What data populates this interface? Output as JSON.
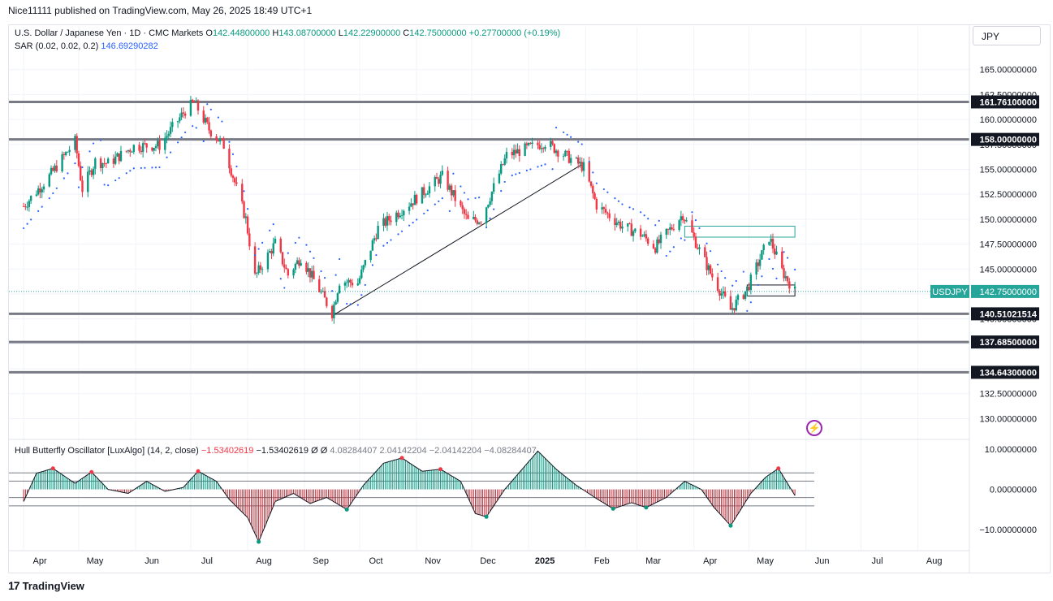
{
  "header": {
    "publisher": "Nice11111 published on TradingView.com, May 26, 2025 18:49 UTC+1"
  },
  "legend": {
    "symbol": "U.S. Dollar / Japanese Yen · 1D · CMC Markets",
    "o_label": "O",
    "o": "142.44800000",
    "h_label": "H",
    "h": "143.08700000",
    "l_label": "L",
    "l": "142.22900000",
    "c_label": "C",
    "c": "142.75000000",
    "change": "+0.27700000 (+0.19%)",
    "sar_label": "SAR (0.02, 0.02, 0.2)",
    "sar_value": "146.69290282",
    "osc_label": "Hull Butterfly Oscillator [LuxAlgo] (14, 2, close)",
    "osc_v1": "−1.53402619",
    "osc_v2": "−1.53402619",
    "osc_v3": "Ø",
    "osc_v4": "Ø",
    "osc_v5": "4.08284407",
    "osc_v6": "2.04142204",
    "osc_v7": "−2.04142204",
    "osc_v8": "−4.08284407"
  },
  "currency": "JPY",
  "footer": {
    "brand": "TradingView",
    "logo_text": "17"
  },
  "colors": {
    "up": "#089981",
    "down": "#f23645",
    "sar": "#2962ff",
    "level": "#787b86",
    "osc_up": "#089981",
    "osc_down": "#b22833",
    "label_bg": "#131722",
    "price_label": "#26a69a"
  },
  "chart_data": [
    {
      "type": "candlestick",
      "title": "U.S. Dollar / Japanese Yen · 1D · CMC Markets",
      "x_ticks": [
        "Apr",
        "May",
        "Jun",
        "Jul",
        "Aug",
        "Sep",
        "Oct",
        "Nov",
        "Dec",
        "2025",
        "Feb",
        "Mar",
        "Apr",
        "May",
        "Jun",
        "Jul",
        "Aug"
      ],
      "y_ticks": [
        "165.00000000",
        "162.50000000",
        "160.00000000",
        "157.50000000",
        "155.00000000",
        "152.50000000",
        "150.00000000",
        "147.50000000",
        "145.00000000",
        "142.50000000",
        "140.00000000",
        "137.50000000",
        "135.00000000",
        "132.50000000",
        "130.00000000"
      ],
      "ylim": [
        128,
        167.5
      ],
      "horizontal_levels": [
        {
          "value": 161.761,
          "label": "161.76100000"
        },
        {
          "value": 158.0,
          "label": "158.00000000"
        },
        {
          "value": 140.51021514,
          "label": "140.51021514"
        },
        {
          "value": 137.685,
          "label": "137.68500000"
        },
        {
          "value": 134.643,
          "label": "134.64300000"
        }
      ],
      "last_price": {
        "value": 142.75,
        "symbol": "USDJPY",
        "label": "142.75000000"
      },
      "trendline": [
        {
          "date": "2024-09-16",
          "price": 140.3
        },
        {
          "date": "2025-01-31",
          "price": 155.6
        }
      ],
      "boxes": [
        {
          "from": "2025-03-27",
          "to": "2025-05-26",
          "top": 149.3,
          "bottom": 148.2
        },
        {
          "from": "2025-04-30",
          "to": "2025-05-26",
          "top": 143.4,
          "bottom": 142.3
        }
      ],
      "path": [
        {
          "date": "2024-04-01",
          "close": 151.3
        },
        {
          "date": "2024-04-15",
          "close": 154.3
        },
        {
          "date": "2024-04-29",
          "close": 157.8
        },
        {
          "date": "2024-05-03",
          "close": 153.0
        },
        {
          "date": "2024-05-10",
          "close": 155.8
        },
        {
          "date": "2024-05-17",
          "close": 155.6
        },
        {
          "date": "2024-05-31",
          "close": 157.3
        },
        {
          "date": "2024-06-14",
          "close": 157.4
        },
        {
          "date": "2024-06-28",
          "close": 160.9
        },
        {
          "date": "2024-07-03",
          "close": 161.7
        },
        {
          "date": "2024-07-11",
          "close": 159.0
        },
        {
          "date": "2024-07-19",
          "close": 157.4
        },
        {
          "date": "2024-07-31",
          "close": 150.0
        },
        {
          "date": "2024-08-05",
          "close": 144.2
        },
        {
          "date": "2024-08-16",
          "close": 147.6
        },
        {
          "date": "2024-08-23",
          "close": 144.4
        },
        {
          "date": "2024-08-30",
          "close": 146.2
        },
        {
          "date": "2024-09-16",
          "close": 140.6
        },
        {
          "date": "2024-09-20",
          "close": 143.8
        },
        {
          "date": "2024-09-30",
          "close": 143.6
        },
        {
          "date": "2024-10-11",
          "close": 149.1
        },
        {
          "date": "2024-10-31",
          "close": 152.0
        },
        {
          "date": "2024-11-15",
          "close": 154.3
        },
        {
          "date": "2024-11-29",
          "close": 149.8
        },
        {
          "date": "2024-12-06",
          "close": 150.0
        },
        {
          "date": "2024-12-20",
          "close": 156.4
        },
        {
          "date": "2025-01-10",
          "close": 157.7
        },
        {
          "date": "2025-01-31",
          "close": 155.2
        },
        {
          "date": "2025-02-07",
          "close": 151.4
        },
        {
          "date": "2025-02-21",
          "close": 149.3
        },
        {
          "date": "2025-03-03",
          "close": 148.5
        },
        {
          "date": "2025-03-11",
          "close": 147.2
        },
        {
          "date": "2025-03-26",
          "close": 150.5
        },
        {
          "date": "2025-04-04",
          "close": 146.9
        },
        {
          "date": "2025-04-10",
          "close": 144.6
        },
        {
          "date": "2025-04-21",
          "close": 140.9
        },
        {
          "date": "2025-04-30",
          "close": 143.0
        },
        {
          "date": "2025-05-12",
          "close": 148.2
        },
        {
          "date": "2025-05-19",
          "close": 144.8
        },
        {
          "date": "2025-05-26",
          "close": 142.75
        }
      ]
    },
    {
      "type": "histogram",
      "title": "Hull Butterfly Oscillator [LuxAlgo] (14, 2, close)",
      "y_ticks": [
        "10.00000000",
        "0.00000000",
        "−10.00000000"
      ],
      "ylim": [
        -15,
        12
      ],
      "levels": [
        4.08284407,
        2.04142204,
        -2.04142204,
        -4.08284407
      ],
      "last": -1.53402619,
      "path": [
        {
          "date": "2024-04-01",
          "value": -3.0
        },
        {
          "date": "2024-04-08",
          "value": 4.0
        },
        {
          "date": "2024-04-17",
          "value": 5.2
        },
        {
          "date": "2024-04-29",
          "value": 1.5
        },
        {
          "date": "2024-05-08",
          "value": 4.3
        },
        {
          "date": "2024-05-17",
          "value": 0.0
        },
        {
          "date": "2024-05-28",
          "value": -1.0
        },
        {
          "date": "2024-06-07",
          "value": 2.0
        },
        {
          "date": "2024-06-17",
          "value": -0.5
        },
        {
          "date": "2024-06-27",
          "value": 0.5
        },
        {
          "date": "2024-07-05",
          "value": 4.5
        },
        {
          "date": "2024-07-15",
          "value": 2.0
        },
        {
          "date": "2024-07-22",
          "value": -2.5
        },
        {
          "date": "2024-08-01",
          "value": -7.0
        },
        {
          "date": "2024-08-07",
          "value": -13.0
        },
        {
          "date": "2024-08-16",
          "value": -3.0
        },
        {
          "date": "2024-08-26",
          "value": -1.0
        },
        {
          "date": "2024-09-04",
          "value": -3.5
        },
        {
          "date": "2024-09-13",
          "value": -2.0
        },
        {
          "date": "2024-09-24",
          "value": -5.0
        },
        {
          "date": "2024-10-03",
          "value": 1.0
        },
        {
          "date": "2024-10-14",
          "value": 6.5
        },
        {
          "date": "2024-10-24",
          "value": 7.8
        },
        {
          "date": "2024-11-04",
          "value": 4.5
        },
        {
          "date": "2024-11-14",
          "value": 5.0
        },
        {
          "date": "2024-11-25",
          "value": 2.0
        },
        {
          "date": "2024-12-03",
          "value": -6.0
        },
        {
          "date": "2024-12-09",
          "value": -6.8
        },
        {
          "date": "2024-12-19",
          "value": 0.0
        },
        {
          "date": "2025-01-06",
          "value": 9.5
        },
        {
          "date": "2025-01-16",
          "value": 5.0
        },
        {
          "date": "2025-01-27",
          "value": 1.0
        },
        {
          "date": "2025-02-06",
          "value": -2.0
        },
        {
          "date": "2025-02-16",
          "value": -4.8
        },
        {
          "date": "2025-02-26",
          "value": -3.3
        },
        {
          "date": "2025-03-06",
          "value": -4.5
        },
        {
          "date": "2025-03-17",
          "value": -2.0
        },
        {
          "date": "2025-03-27",
          "value": 2.0
        },
        {
          "date": "2025-04-05",
          "value": 0.0
        },
        {
          "date": "2025-04-12",
          "value": -4.5
        },
        {
          "date": "2025-04-21",
          "value": -9.0
        },
        {
          "date": "2025-05-02",
          "value": -1.0
        },
        {
          "date": "2025-05-10",
          "value": 3.0
        },
        {
          "date": "2025-05-17",
          "value": 5.2
        },
        {
          "date": "2025-05-26",
          "value": -1.53
        }
      ],
      "red_markers": [
        "2024-04-17",
        "2024-05-08",
        "2024-07-05",
        "2024-10-24",
        "2024-11-14",
        "2025-05-17"
      ],
      "green_markers": [
        "2024-08-07",
        "2024-09-24",
        "2024-12-09",
        "2025-02-16",
        "2025-03-06",
        "2025-04-21"
      ]
    }
  ]
}
